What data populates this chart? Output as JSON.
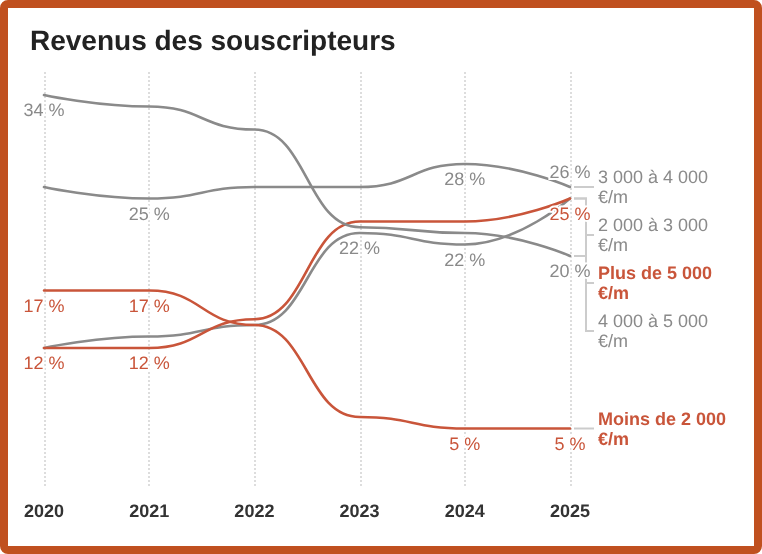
{
  "chart_data": {
    "type": "line",
    "title": "Revenus des souscripteurs",
    "categories": [
      "2020",
      "2021",
      "2022",
      "2023",
      "2024",
      "2025"
    ],
    "ylim": [
      0,
      36
    ],
    "tick_labels": "x",
    "grid": "x",
    "marker": "none",
    "line_style": "solid",
    "series": [
      {
        "name": "3 000 à 4 000 €/m",
        "color": "#8a8a8a",
        "values": [
          26,
          25,
          26,
          26,
          28,
          26
        ],
        "value_labels": [
          null,
          "25 %",
          null,
          null,
          "28 %",
          "26 %"
        ]
      },
      {
        "name": "2 000 à 3 000 €/m",
        "color": "#8a8a8a",
        "values": [
          12,
          13,
          14,
          22,
          21,
          25
        ],
        "value_labels": [
          null,
          null,
          null,
          "22 %",
          null,
          null
        ]
      },
      {
        "name": "Plus de 5 000 €/m",
        "color": "#c9553a",
        "values": [
          12,
          12,
          14.5,
          23,
          23,
          25
        ],
        "value_labels": [
          "12 %",
          "12 %",
          null,
          null,
          null,
          "25 %"
        ]
      },
      {
        "name": "4 000 à 5 000 €/m",
        "color": "#8a8a8a",
        "values": [
          34,
          33,
          31,
          22.5,
          22,
          20
        ],
        "value_labels": [
          "34 %",
          null,
          null,
          null,
          "22 %",
          "20 %"
        ]
      },
      {
        "name": "Moins de 2 000 €/m",
        "color": "#c9553a",
        "values": [
          17,
          17,
          14,
          6,
          5,
          5
        ],
        "value_labels": [
          "17 %",
          "17 %",
          null,
          null,
          "5 %",
          "5 %"
        ]
      }
    ]
  }
}
